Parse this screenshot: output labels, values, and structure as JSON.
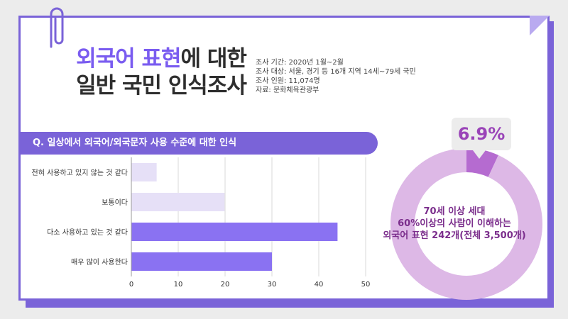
{
  "title": {
    "line1_accent": "외국어 표현",
    "line1_rest": "에 대한",
    "line2": "일반 국민 인식조사"
  },
  "survey_info": [
    "조사 기간: 2020년 1월~2월",
    "조사 대상: 서울, 경기 등 16개 지역 14세~79세 국민",
    "조사 인원: 11,074명",
    "자료: 문화체육관광부"
  ],
  "question": "Q. 일상에서 외국어/외국문자 사용 수준에 대한 인식",
  "colors": {
    "accent": "#7a63d8",
    "bar_light": "#e6e0f7",
    "bar_dark": "#8a72f2",
    "donut_main": "#ddb8e6",
    "donut_highlight": "#b56bd0"
  },
  "chart_data": [
    {
      "type": "bar",
      "orientation": "horizontal",
      "title": "Q. 일상에서 외국어/외국문자 사용 수준에 대한 인식",
      "categories": [
        "전혀 사용하고 있지 않는 것 같다",
        "보통이다",
        "다소 사용하고 있는 것 같다",
        "매우 많이 사용한다"
      ],
      "values": [
        5.4,
        19.9,
        44.0,
        30.0
      ],
      "bar_colors": [
        "#e6e0f7",
        "#e6e0f7",
        "#8a72f2",
        "#8a72f2"
      ],
      "xlim": [
        0,
        50
      ],
      "xticks": [
        0,
        10,
        20,
        30,
        40,
        50
      ],
      "grid": true
    },
    {
      "type": "pie",
      "style": "donut",
      "values": [
        6.9,
        93.1
      ],
      "highlight_label": "6.9%",
      "center_text": [
        "70세 이상 세대",
        "60%이상의 사람이 이해하는",
        "외국어 표현  242개(전체 3,500개)"
      ]
    }
  ]
}
